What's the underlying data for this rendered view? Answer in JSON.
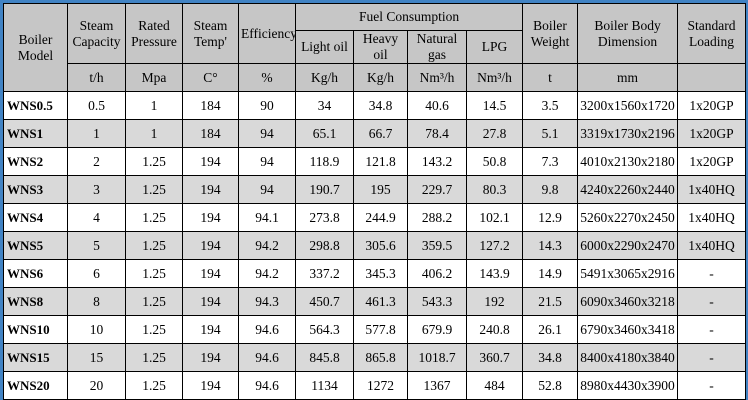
{
  "colors": {
    "frame_border": "#4183c4",
    "header_bg": "#c6c6c6",
    "stripe_bg": "#d9d9d9",
    "grid_line": "#000000"
  },
  "table": {
    "header": {
      "model_label": "Boiler Model",
      "spec_columns": [
        {
          "label": "Steam Capacity",
          "unit": "t/h"
        },
        {
          "label": "Rated Pressure",
          "unit": "Mpa"
        },
        {
          "label": "Steam Temp'",
          "unit": "C°"
        },
        {
          "label": "Efficiency",
          "unit": "%"
        }
      ],
      "fuel_group_label": "Fuel Consumption",
      "fuel_columns": [
        {
          "label": "Light oil",
          "unit": "Kg/h"
        },
        {
          "label": "Heavy oil",
          "unit": "Kg/h"
        },
        {
          "label": "Natural gas",
          "unit": "Nm³/h"
        },
        {
          "label": "LPG",
          "unit": "Nm³/h"
        }
      ],
      "tail_columns": [
        {
          "label": "Boiler Weight",
          "unit": "t"
        },
        {
          "label": "Boiler Body Dimension",
          "unit": "mm"
        },
        {
          "label": "Standard Loading",
          "unit": ""
        }
      ]
    },
    "rows": [
      {
        "model": "WNS0.5",
        "values": [
          "0.5",
          "1",
          "184",
          "90",
          "34",
          "34.8",
          "40.6",
          "14.5",
          "3.5",
          "3200x1560x1720",
          "1x20GP"
        ]
      },
      {
        "model": "WNS1",
        "values": [
          "1",
          "1",
          "184",
          "94",
          "65.1",
          "66.7",
          "78.4",
          "27.8",
          "5.1",
          "3319x1730x2196",
          "1x20GP"
        ]
      },
      {
        "model": "WNS2",
        "values": [
          "2",
          "1.25",
          "194",
          "94",
          "118.9",
          "121.8",
          "143.2",
          "50.8",
          "7.3",
          "4010x2130x2180",
          "1x20GP"
        ]
      },
      {
        "model": "WNS3",
        "values": [
          "3",
          "1.25",
          "194",
          "94",
          "190.7",
          "195",
          "229.7",
          "80.3",
          "9.8",
          "4240x2260x2440",
          "1x40HQ"
        ]
      },
      {
        "model": "WNS4",
        "values": [
          "4",
          "1.25",
          "194",
          "94.1",
          "273.8",
          "244.9",
          "288.2",
          "102.1",
          "12.9",
          "5260x2270x2450",
          "1x40HQ"
        ]
      },
      {
        "model": "WNS5",
        "values": [
          "5",
          "1.25",
          "194",
          "94.2",
          "298.8",
          "305.6",
          "359.5",
          "127.2",
          "14.3",
          "6000x2290x2470",
          "1x40HQ"
        ]
      },
      {
        "model": "WNS6",
        "values": [
          "6",
          "1.25",
          "194",
          "94.2",
          "337.2",
          "345.3",
          "406.2",
          "143.9",
          "14.9",
          "5491x3065x2916",
          "-"
        ]
      },
      {
        "model": "WNS8",
        "values": [
          "8",
          "1.25",
          "194",
          "94.3",
          "450.7",
          "461.3",
          "543.3",
          "192",
          "21.5",
          "6090x3460x3218",
          "-"
        ]
      },
      {
        "model": "WNS10",
        "values": [
          "10",
          "1.25",
          "194",
          "94.6",
          "564.3",
          "577.8",
          "679.9",
          "240.8",
          "26.1",
          "6790x3460x3418",
          "-"
        ]
      },
      {
        "model": "WNS15",
        "values": [
          "15",
          "1.25",
          "194",
          "94.6",
          "845.8",
          "865.8",
          "1018.7",
          "360.7",
          "34.8",
          "8400x4180x3840",
          "-"
        ]
      },
      {
        "model": "WNS20",
        "values": [
          "20",
          "1.25",
          "194",
          "94.6",
          "1134",
          "1272",
          "1367",
          "484",
          "52.8",
          "8980x4430x3900",
          "-"
        ]
      }
    ]
  }
}
